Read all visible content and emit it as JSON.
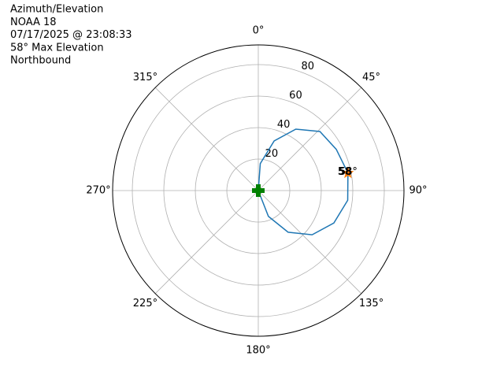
{
  "chart_data": {
    "type": "polar",
    "title_lines": [
      "Azimuth/Elevation",
      "NOAA 18",
      "07/17/2025 @ 23:08:33",
      "58° Max Elevation",
      "Northbound"
    ],
    "series": [
      {
        "name": "track",
        "kind": "line",
        "color": "#1f77b4",
        "x": [
          170,
          158.6,
          144.4,
          129.4,
          113.2,
          96.2,
          78.9,
          62.1,
          46.2,
          31.4,
          17.7,
          4.2,
          355
        ],
        "values": [
          0,
          17.6,
          32.5,
          44.2,
          52.2,
          57.1,
          58,
          56,
          54.2,
          45.7,
          33.1,
          17.2,
          0
        ]
      },
      {
        "name": "max",
        "kind": "star",
        "color": "#ff7f0e",
        "x": [
          78.9
        ],
        "values": [
          58
        ]
      },
      {
        "name": "observer",
        "kind": "plus",
        "color": "#008000",
        "x": [
          0
        ],
        "values": [
          0
        ]
      }
    ],
    "annotations": [
      "58",
      "58°"
    ],
    "ylim": [
      0,
      92.5
    ],
    "yticks": [
      20,
      40,
      60,
      80
    ],
    "xticks": [
      {
        "value": 0,
        "label": "0°"
      },
      {
        "value": 45,
        "label": "45°"
      },
      {
        "value": 90,
        "label": "90°"
      },
      {
        "value": 135,
        "label": "135°"
      },
      {
        "value": 180,
        "label": "180°"
      },
      {
        "value": 225,
        "label": "225°"
      },
      {
        "value": 270,
        "label": "270°"
      },
      {
        "value": 315,
        "label": "315°"
      }
    ],
    "grid": true
  }
}
